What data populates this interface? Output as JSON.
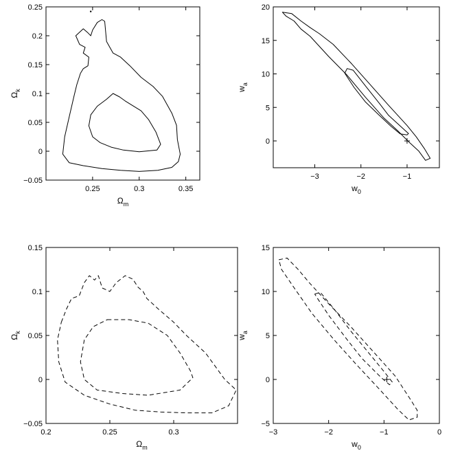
{
  "chart_data": [
    {
      "type": "line",
      "xlabel": "Ω",
      "xlabel_sub": "m",
      "ylabel": "Ω",
      "ylabel_sub": "k",
      "xlim": [
        0.2,
        0.365
      ],
      "ylim": [
        -0.05,
        0.25
      ],
      "xticks": [
        0.25,
        0.3,
        0.35
      ],
      "xtick_labels": [
        "0.25",
        "0.3",
        "0.35"
      ],
      "yticks": [
        -0.05,
        0,
        0.05,
        0.1,
        0.15,
        0.2,
        0.25
      ],
      "ytick_labels": [
        "−0.05",
        "0",
        "0.05",
        "0.1",
        "0.15",
        "0.2",
        "0.25"
      ],
      "line_style": "solid",
      "series": [
        {
          "points": [
            [
              0.265,
              0.09
            ],
            [
              0.272,
              0.1
            ],
            [
              0.279,
              0.094
            ],
            [
              0.285,
              0.087
            ],
            [
              0.292,
              0.08
            ],
            [
              0.302,
              0.07
            ],
            [
              0.31,
              0.055
            ],
            [
              0.318,
              0.033
            ],
            [
              0.323,
              0.012
            ],
            [
              0.319,
              0.002
            ],
            [
              0.3,
              -0.001
            ],
            [
              0.283,
              0.002
            ],
            [
              0.27,
              0.007
            ],
            [
              0.258,
              0.015
            ],
            [
              0.25,
              0.025
            ],
            [
              0.246,
              0.044
            ],
            [
              0.248,
              0.063
            ],
            [
              0.255,
              0.078
            ],
            [
              0.265,
              0.09
            ]
          ]
        },
        {
          "points": [
            [
              0.232,
              0.2
            ],
            [
              0.24,
              0.212
            ],
            [
              0.245,
              0.205
            ],
            [
              0.248,
              0.2
            ],
            [
              0.25,
              0.21
            ],
            [
              0.255,
              0.223
            ],
            [
              0.26,
              0.228
            ],
            [
              0.263,
              0.225
            ],
            [
              0.265,
              0.19
            ],
            [
              0.272,
              0.17
            ],
            [
              0.28,
              0.163
            ],
            [
              0.29,
              0.148
            ],
            [
              0.302,
              0.128
            ],
            [
              0.315,
              0.112
            ],
            [
              0.325,
              0.095
            ],
            [
              0.335,
              0.066
            ],
            [
              0.34,
              0.045
            ],
            [
              0.341,
              0.02
            ],
            [
              0.344,
              -0.005
            ],
            [
              0.342,
              -0.018
            ],
            [
              0.335,
              -0.028
            ],
            [
              0.32,
              -0.033
            ],
            [
              0.3,
              -0.035
            ],
            [
              0.28,
              -0.033
            ],
            [
              0.26,
              -0.03
            ],
            [
              0.24,
              -0.025
            ],
            [
              0.225,
              -0.02
            ],
            [
              0.218,
              -0.005
            ],
            [
              0.22,
              0.025
            ],
            [
              0.225,
              0.06
            ],
            [
              0.23,
              0.095
            ],
            [
              0.233,
              0.115
            ],
            [
              0.237,
              0.135
            ],
            [
              0.24,
              0.143
            ],
            [
              0.245,
              0.148
            ],
            [
              0.246,
              0.163
            ],
            [
              0.24,
              0.17
            ],
            [
              0.242,
              0.18
            ],
            [
              0.236,
              0.185
            ],
            [
              0.232,
              0.2
            ]
          ]
        }
      ],
      "markers": [
        {
          "shape": "dot",
          "x": 0.248,
          "y": 0.242
        }
      ]
    },
    {
      "type": "line",
      "xlabel": "w",
      "xlabel_sub": "0",
      "ylabel": "w",
      "ylabel_sub": "a",
      "xlim": [
        -3.9,
        -0.3
      ],
      "ylim": [
        -4,
        20
      ],
      "xticks": [
        -3,
        -2,
        -1
      ],
      "xtick_labels": [
        "−3",
        "−2",
        "−1"
      ],
      "yticks": [
        0,
        5,
        10,
        15,
        20
      ],
      "ytick_labels": [
        "0",
        "5",
        "10",
        "15",
        "20"
      ],
      "line_style": "solid",
      "series": [
        {
          "points": [
            [
              -2.3,
              10.8
            ],
            [
              -2.17,
              10.55
            ],
            [
              -1.9,
              8.2
            ],
            [
              -1.6,
              5.6
            ],
            [
              -1.4,
              3.8
            ],
            [
              -1.05,
              1.6
            ],
            [
              -0.97,
              1.1
            ],
            [
              -1.0,
              0.9
            ],
            [
              -1.15,
              1.05
            ],
            [
              -1.35,
              2.2
            ],
            [
              -1.6,
              3.8
            ],
            [
              -1.9,
              5.8
            ],
            [
              -2.15,
              8.0
            ],
            [
              -2.35,
              10.1
            ],
            [
              -2.3,
              10.8
            ]
          ]
        },
        {
          "points": [
            [
              -3.7,
              19.2
            ],
            [
              -3.5,
              19.0
            ],
            [
              -3.3,
              17.9
            ],
            [
              -3.1,
              16.9
            ],
            [
              -2.9,
              16.0
            ],
            [
              -2.6,
              14.4
            ],
            [
              -2.2,
              11.5
            ],
            [
              -1.8,
              8.4
            ],
            [
              -1.4,
              5.3
            ],
            [
              -1.0,
              2.3
            ],
            [
              -0.8,
              0.6
            ],
            [
              -0.62,
              -1.2
            ],
            [
              -0.5,
              -2.6
            ],
            [
              -0.6,
              -2.9
            ],
            [
              -0.75,
              -1.5
            ],
            [
              -0.97,
              -0.1
            ],
            [
              -1.2,
              1.5
            ],
            [
              -1.5,
              3.4
            ],
            [
              -1.9,
              6.5
            ],
            [
              -2.3,
              9.8
            ],
            [
              -2.7,
              12.6
            ],
            [
              -3.1,
              15.6
            ],
            [
              -3.3,
              16.7
            ],
            [
              -3.45,
              17.9
            ],
            [
              -3.62,
              18.6
            ],
            [
              -3.7,
              19.2
            ]
          ]
        }
      ],
      "markers": [
        {
          "shape": "plus",
          "x": -1.0,
          "y": 0.0
        }
      ]
    },
    {
      "type": "line",
      "xlabel": "Ω",
      "xlabel_sub": "m",
      "ylabel": "Ω",
      "ylabel_sub": "k",
      "xlim": [
        0.2,
        0.35
      ],
      "ylim": [
        -0.05,
        0.15
      ],
      "xticks": [
        0.2,
        0.25,
        0.3
      ],
      "xtick_labels": [
        "0.2",
        "0.25",
        "0.3"
      ],
      "yticks": [
        -0.05,
        0,
        0.05,
        0.1,
        0.15
      ],
      "ytick_labels": [
        "−0.05",
        "0",
        "0.05",
        "0.1",
        "0.15"
      ],
      "line_style": "dashed",
      "series": [
        {
          "points": [
            [
              0.248,
              0.068
            ],
            [
              0.265,
              0.068
            ],
            [
              0.28,
              0.064
            ],
            [
              0.295,
              0.05
            ],
            [
              0.305,
              0.03
            ],
            [
              0.313,
              0.01
            ],
            [
              0.315,
              0.002
            ],
            [
              0.305,
              -0.012
            ],
            [
              0.28,
              -0.018
            ],
            [
              0.26,
              -0.016
            ],
            [
              0.24,
              -0.012
            ],
            [
              0.23,
              0.0
            ],
            [
              0.227,
              0.02
            ],
            [
              0.23,
              0.045
            ],
            [
              0.237,
              0.06
            ],
            [
              0.248,
              0.068
            ]
          ]
        },
        {
          "points": [
            [
              0.212,
              0.065
            ],
            [
              0.216,
              0.08
            ],
            [
              0.22,
              0.092
            ],
            [
              0.226,
              0.095
            ],
            [
              0.23,
              0.11
            ],
            [
              0.234,
              0.118
            ],
            [
              0.238,
              0.113
            ],
            [
              0.241,
              0.118
            ],
            [
              0.244,
              0.104
            ],
            [
              0.25,
              0.1
            ],
            [
              0.255,
              0.11
            ],
            [
              0.262,
              0.118
            ],
            [
              0.268,
              0.114
            ],
            [
              0.272,
              0.105
            ],
            [
              0.276,
              0.1
            ],
            [
              0.279,
              0.092
            ],
            [
              0.288,
              0.08
            ],
            [
              0.3,
              0.065
            ],
            [
              0.31,
              0.05
            ],
            [
              0.325,
              0.03
            ],
            [
              0.33,
              0.02
            ],
            [
              0.34,
              0.0
            ],
            [
              0.349,
              -0.012
            ],
            [
              0.343,
              -0.03
            ],
            [
              0.33,
              -0.038
            ],
            [
              0.31,
              -0.038
            ],
            [
              0.29,
              -0.037
            ],
            [
              0.27,
              -0.035
            ],
            [
              0.25,
              -0.028
            ],
            [
              0.23,
              -0.018
            ],
            [
              0.215,
              -0.003
            ],
            [
              0.21,
              0.02
            ],
            [
              0.209,
              0.045
            ],
            [
              0.212,
              0.065
            ]
          ]
        }
      ],
      "markers": []
    },
    {
      "type": "line",
      "xlabel": "w",
      "xlabel_sub": "0",
      "ylabel": "w",
      "ylabel_sub": "a",
      "xlim": [
        -3,
        0
      ],
      "ylim": [
        -5,
        15
      ],
      "xticks": [
        -3,
        -2,
        -1,
        0
      ],
      "xtick_labels": [
        "−3",
        "−2",
        "−1",
        "0"
      ],
      "yticks": [
        -5,
        0,
        5,
        10,
        15
      ],
      "ytick_labels": [
        "−5",
        "0",
        "5",
        "10",
        "15"
      ],
      "line_style": "dashed",
      "series": [
        {
          "points": [
            [
              -2.25,
              9.7
            ],
            [
              -2.15,
              9.9
            ],
            [
              -1.9,
              8.0
            ],
            [
              -1.6,
              5.5
            ],
            [
              -1.3,
              3.2
            ],
            [
              -1.0,
              0.9
            ],
            [
              -0.85,
              -0.3
            ],
            [
              -0.9,
              -0.6
            ],
            [
              -1.05,
              0.2
            ],
            [
              -1.4,
              2.4
            ],
            [
              -1.7,
              4.8
            ],
            [
              -2.0,
              7.3
            ],
            [
              -2.2,
              9.2
            ],
            [
              -2.25,
              9.7
            ]
          ]
        },
        {
          "points": [
            [
              -2.9,
              13.6
            ],
            [
              -2.75,
              13.8
            ],
            [
              -2.55,
              12.5
            ],
            [
              -2.35,
              11.0
            ],
            [
              -2.0,
              8.6
            ],
            [
              -1.6,
              6.0
            ],
            [
              -1.2,
              3.2
            ],
            [
              -0.8,
              0.4
            ],
            [
              -0.55,
              -2.0
            ],
            [
              -0.4,
              -3.5
            ],
            [
              -0.4,
              -4.3
            ],
            [
              -0.55,
              -4.6
            ],
            [
              -0.75,
              -3.4
            ],
            [
              -1.1,
              -1.0
            ],
            [
              -1.5,
              1.7
            ],
            [
              -1.9,
              4.5
            ],
            [
              -2.3,
              7.5
            ],
            [
              -2.6,
              10.2
            ],
            [
              -2.85,
              12.5
            ],
            [
              -2.9,
              13.6
            ]
          ]
        }
      ],
      "markers": [
        {
          "shape": "plus",
          "x": -0.95,
          "y": 0.0
        }
      ]
    }
  ]
}
